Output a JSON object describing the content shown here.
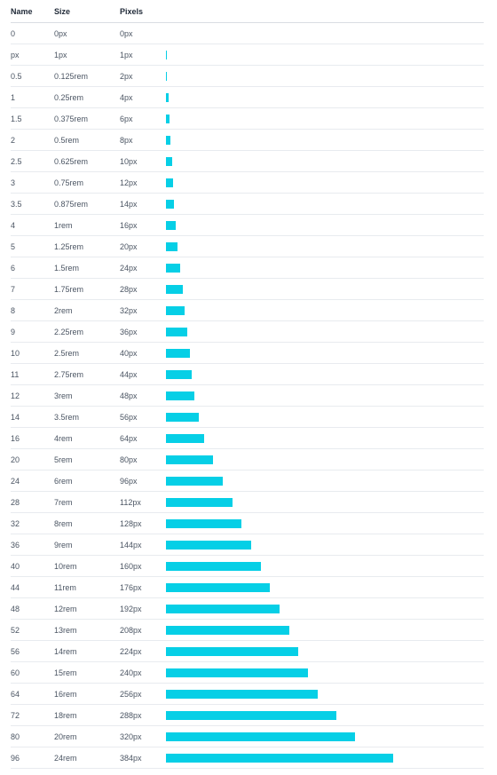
{
  "header": {
    "name": "Name",
    "size": "Size",
    "pixels": "Pixels"
  },
  "accent_color": "#06cfe6",
  "rows": [
    {
      "name": "0",
      "size": "0px",
      "pixels": "0px",
      "value": 0
    },
    {
      "name": "px",
      "size": "1px",
      "pixels": "1px",
      "value": 1
    },
    {
      "name": "0.5",
      "size": "0.125rem",
      "pixels": "2px",
      "value": 2
    },
    {
      "name": "1",
      "size": "0.25rem",
      "pixels": "4px",
      "value": 4
    },
    {
      "name": "1.5",
      "size": "0.375rem",
      "pixels": "6px",
      "value": 6
    },
    {
      "name": "2",
      "size": "0.5rem",
      "pixels": "8px",
      "value": 8
    },
    {
      "name": "2.5",
      "size": "0.625rem",
      "pixels": "10px",
      "value": 10
    },
    {
      "name": "3",
      "size": "0.75rem",
      "pixels": "12px",
      "value": 12
    },
    {
      "name": "3.5",
      "size": "0.875rem",
      "pixels": "14px",
      "value": 14
    },
    {
      "name": "4",
      "size": "1rem",
      "pixels": "16px",
      "value": 16
    },
    {
      "name": "5",
      "size": "1.25rem",
      "pixels": "20px",
      "value": 20
    },
    {
      "name": "6",
      "size": "1.5rem",
      "pixels": "24px",
      "value": 24
    },
    {
      "name": "7",
      "size": "1.75rem",
      "pixels": "28px",
      "value": 28
    },
    {
      "name": "8",
      "size": "2rem",
      "pixels": "32px",
      "value": 32
    },
    {
      "name": "9",
      "size": "2.25rem",
      "pixels": "36px",
      "value": 36
    },
    {
      "name": "10",
      "size": "2.5rem",
      "pixels": "40px",
      "value": 40
    },
    {
      "name": "11",
      "size": "2.75rem",
      "pixels": "44px",
      "value": 44
    },
    {
      "name": "12",
      "size": "3rem",
      "pixels": "48px",
      "value": 48
    },
    {
      "name": "14",
      "size": "3.5rem",
      "pixels": "56px",
      "value": 56
    },
    {
      "name": "16",
      "size": "4rem",
      "pixels": "64px",
      "value": 64
    },
    {
      "name": "20",
      "size": "5rem",
      "pixels": "80px",
      "value": 80
    },
    {
      "name": "24",
      "size": "6rem",
      "pixels": "96px",
      "value": 96
    },
    {
      "name": "28",
      "size": "7rem",
      "pixels": "112px",
      "value": 112
    },
    {
      "name": "32",
      "size": "8rem",
      "pixels": "128px",
      "value": 128
    },
    {
      "name": "36",
      "size": "9rem",
      "pixels": "144px",
      "value": 144
    },
    {
      "name": "40",
      "size": "10rem",
      "pixels": "160px",
      "value": 160
    },
    {
      "name": "44",
      "size": "11rem",
      "pixels": "176px",
      "value": 176
    },
    {
      "name": "48",
      "size": "12rem",
      "pixels": "192px",
      "value": 192
    },
    {
      "name": "52",
      "size": "13rem",
      "pixels": "208px",
      "value": 208
    },
    {
      "name": "56",
      "size": "14rem",
      "pixels": "224px",
      "value": 224
    },
    {
      "name": "60",
      "size": "15rem",
      "pixels": "240px",
      "value": 240
    },
    {
      "name": "64",
      "size": "16rem",
      "pixels": "256px",
      "value": 256
    },
    {
      "name": "72",
      "size": "18rem",
      "pixels": "288px",
      "value": 288
    },
    {
      "name": "80",
      "size": "20rem",
      "pixels": "320px",
      "value": 320
    },
    {
      "name": "96",
      "size": "24rem",
      "pixels": "384px",
      "value": 384
    }
  ]
}
